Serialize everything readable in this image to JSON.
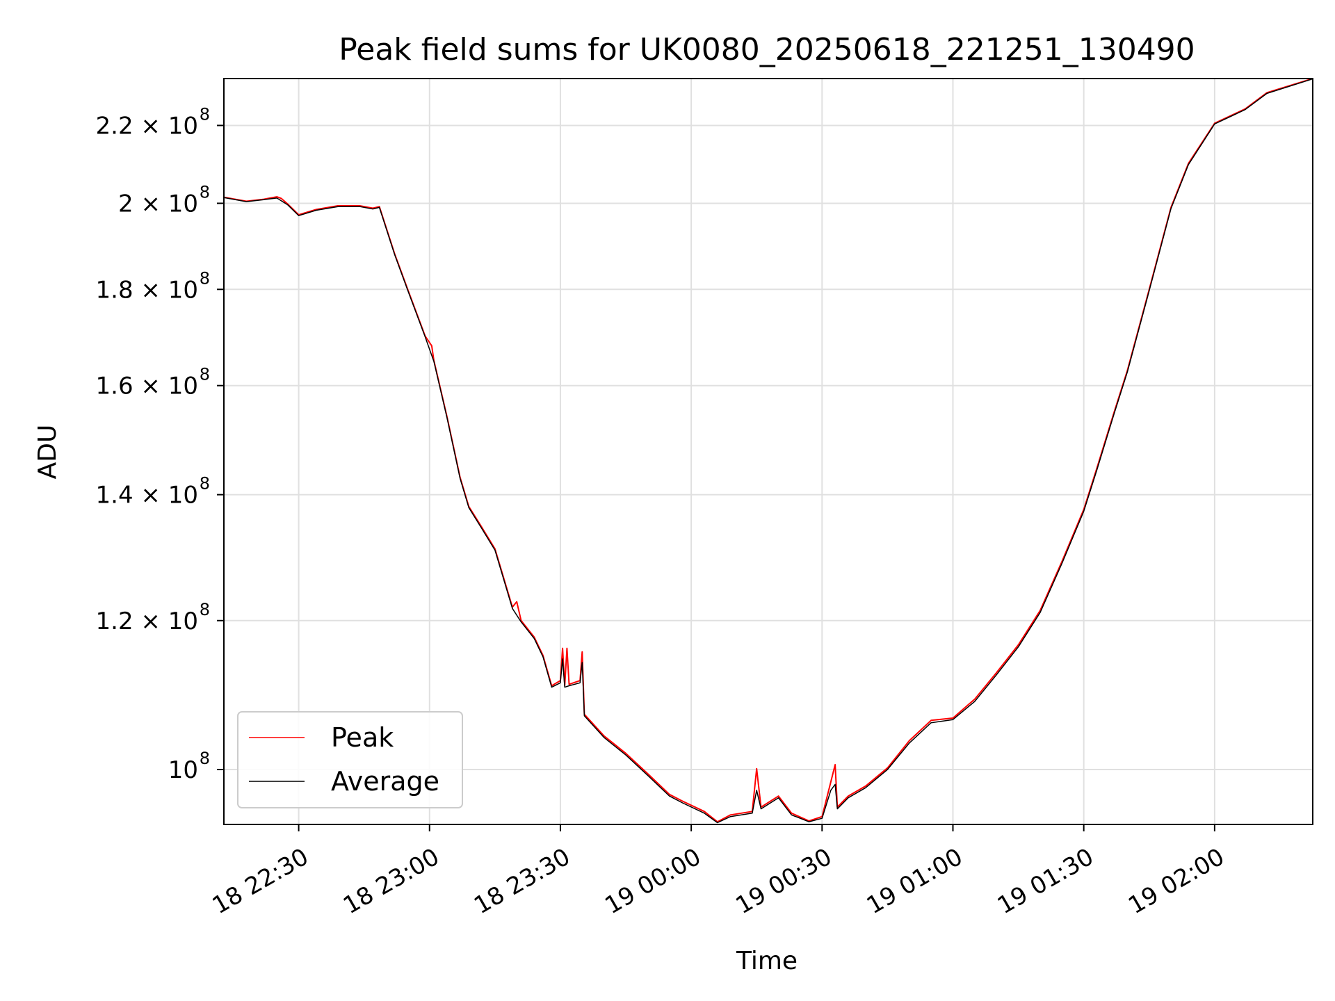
{
  "chart_data": {
    "type": "line",
    "title": "Peak field sums for UK0080_20250618_221251_130490",
    "xlabel": "Time",
    "ylabel": "ADU",
    "y_scale": "log",
    "grid": true,
    "legend_placement": "lower-left",
    "xlim": [
      "2025-06-18 22:12:51",
      "2025-06-19 02:22:30"
    ],
    "ylim": [
      93500000,
      233000000
    ],
    "x_ticks": [
      {
        "value": "2025-06-18 22:30",
        "label": "18 22:30"
      },
      {
        "value": "2025-06-18 23:00",
        "label": "18 23:00"
      },
      {
        "value": "2025-06-18 23:30",
        "label": "18 23:30"
      },
      {
        "value": "2025-06-19 00:00",
        "label": "19 00:00"
      },
      {
        "value": "2025-06-19 00:30",
        "label": "19 00:30"
      },
      {
        "value": "2025-06-19 01:00",
        "label": "19 01:00"
      },
      {
        "value": "2025-06-19 01:30",
        "label": "19 01:30"
      },
      {
        "value": "2025-06-19 02:00",
        "label": "19 02:00"
      }
    ],
    "y_ticks": [
      {
        "value": 100000000,
        "label": "10",
        "exp": "8"
      },
      {
        "value": 120000000,
        "label": "1.2 × 10",
        "exp": "8"
      },
      {
        "value": 140000000,
        "label": "1.4 × 10",
        "exp": "8"
      },
      {
        "value": 160000000,
        "label": "1.6 × 10",
        "exp": "8"
      },
      {
        "value": 180000000,
        "label": "1.8 × 10",
        "exp": "8"
      },
      {
        "value": 200000000,
        "label": "2 × 10",
        "exp": "8"
      },
      {
        "value": 220000000,
        "label": "2.2 × 10",
        "exp": "8"
      }
    ],
    "series": [
      {
        "name": "Peak",
        "color": "#ff0000",
        "points": [
          [
            "2025-06-18 22:12:51",
            201500000
          ],
          [
            "2025-06-18 22:18:00",
            200500000
          ],
          [
            "2025-06-18 22:22:00",
            201000000
          ],
          [
            "2025-06-18 22:25:00",
            201600000
          ],
          [
            "2025-06-18 22:26:00",
            201200000
          ],
          [
            "2025-06-18 22:27:30",
            199800000
          ],
          [
            "2025-06-18 22:30:00",
            197200000
          ],
          [
            "2025-06-18 22:34:00",
            198500000
          ],
          [
            "2025-06-18 22:39:00",
            199400000
          ],
          [
            "2025-06-18 22:44:00",
            199400000
          ],
          [
            "2025-06-18 22:47:00",
            198800000
          ],
          [
            "2025-06-18 22:48:30",
            199200000
          ],
          [
            "2025-06-18 22:52:00",
            188000000
          ],
          [
            "2025-06-18 22:55:00",
            180000000
          ],
          [
            "2025-06-18 22:59:00",
            170000000
          ],
          [
            "2025-06-18 23:00:30",
            168000000
          ],
          [
            "2025-06-18 23:01:00",
            165000000
          ],
          [
            "2025-06-18 23:04:00",
            154000000
          ],
          [
            "2025-06-18 23:07:00",
            143000000
          ],
          [
            "2025-06-18 23:09:00",
            138000000
          ],
          [
            "2025-06-18 23:12:00",
            134500000
          ],
          [
            "2025-06-18 23:15:00",
            131000000
          ],
          [
            "2025-06-18 23:19:00",
            122000000
          ],
          [
            "2025-06-18 23:20:00",
            122800000
          ],
          [
            "2025-06-18 23:21:00",
            120000000
          ],
          [
            "2025-06-18 23:24:00",
            117600000
          ],
          [
            "2025-06-18 23:26:00",
            115000000
          ],
          [
            "2025-06-18 23:28:00",
            110800000
          ],
          [
            "2025-06-18 23:30:00",
            111500000
          ],
          [
            "2025-06-18 23:30:30",
            116000000
          ],
          [
            "2025-06-18 23:31:00",
            110800000
          ],
          [
            "2025-06-18 23:31:30",
            116000000
          ],
          [
            "2025-06-18 23:32:00",
            111000000
          ],
          [
            "2025-06-18 23:34:30",
            111500000
          ],
          [
            "2025-06-18 23:35:00",
            115500000
          ],
          [
            "2025-06-18 23:35:30",
            107000000
          ],
          [
            "2025-06-18 23:40:00",
            104200000
          ],
          [
            "2025-06-18 23:45:00",
            102000000
          ],
          [
            "2025-06-18 23:50:00",
            99500000
          ],
          [
            "2025-06-18 23:55:00",
            97000000
          ],
          [
            "2025-06-18 23:58:00",
            96200000
          ],
          [
            "2025-06-19 00:03:00",
            95000000
          ],
          [
            "2025-06-19 00:06:00",
            93800000
          ],
          [
            "2025-06-19 00:09:00",
            94600000
          ],
          [
            "2025-06-19 00:14:00",
            95000000
          ],
          [
            "2025-06-19 00:15:00",
            100100000
          ],
          [
            "2025-06-19 00:16:00",
            95500000
          ],
          [
            "2025-06-19 00:20:00",
            96800000
          ],
          [
            "2025-06-19 00:23:00",
            94800000
          ],
          [
            "2025-06-19 00:27:00",
            93900000
          ],
          [
            "2025-06-19 00:30:00",
            94400000
          ],
          [
            "2025-06-19 00:32:00",
            98500000
          ],
          [
            "2025-06-19 00:33:00",
            100600000
          ],
          [
            "2025-06-19 00:33:30",
            95500000
          ],
          [
            "2025-06-19 00:36:00",
            96800000
          ],
          [
            "2025-06-19 00:40:00",
            98000000
          ],
          [
            "2025-06-19 00:45:00",
            100200000
          ],
          [
            "2025-06-19 00:50:00",
            103600000
          ],
          [
            "2025-06-19 00:55:00",
            106200000
          ],
          [
            "2025-06-19 01:00:00",
            106500000
          ],
          [
            "2025-06-19 01:05:00",
            109000000
          ],
          [
            "2025-06-19 01:10:00",
            112600000
          ],
          [
            "2025-06-19 01:15:00",
            116500000
          ],
          [
            "2025-06-19 01:20:00",
            121500000
          ],
          [
            "2025-06-19 01:25:00",
            129000000
          ],
          [
            "2025-06-19 01:30:00",
            137500000
          ],
          [
            "2025-06-19 01:33:00",
            144600000
          ],
          [
            "2025-06-19 01:37:00",
            155000000
          ],
          [
            "2025-06-19 01:40:00",
            163000000
          ],
          [
            "2025-06-19 01:45:00",
            180000000
          ],
          [
            "2025-06-19 01:50:00",
            199000000
          ],
          [
            "2025-06-19 01:54:00",
            210000000
          ],
          [
            "2025-06-19 02:00:00",
            220600000
          ],
          [
            "2025-06-19 02:07:00",
            224500000
          ],
          [
            "2025-06-19 02:12:00",
            229000000
          ],
          [
            "2025-06-19 02:22:30",
            233000000
          ]
        ]
      },
      {
        "name": "Average",
        "color": "#000000",
        "points": [
          [
            "2025-06-18 22:12:51",
            201400000
          ],
          [
            "2025-06-18 22:18:00",
            200400000
          ],
          [
            "2025-06-18 22:22:00",
            200900000
          ],
          [
            "2025-06-18 22:25:00",
            201300000
          ],
          [
            "2025-06-18 22:27:30",
            199600000
          ],
          [
            "2025-06-18 22:30:00",
            197000000
          ],
          [
            "2025-06-18 22:34:00",
            198300000
          ],
          [
            "2025-06-18 22:39:00",
            199200000
          ],
          [
            "2025-06-18 22:44:00",
            199200000
          ],
          [
            "2025-06-18 22:47:00",
            198600000
          ],
          [
            "2025-06-18 22:48:30",
            199000000
          ],
          [
            "2025-06-18 22:52:00",
            187800000
          ],
          [
            "2025-06-18 22:55:00",
            179800000
          ],
          [
            "2025-06-18 22:59:00",
            169800000
          ],
          [
            "2025-06-18 23:01:00",
            164800000
          ],
          [
            "2025-06-18 23:04:00",
            153800000
          ],
          [
            "2025-06-18 23:07:00",
            142800000
          ],
          [
            "2025-06-18 23:09:00",
            137800000
          ],
          [
            "2025-06-18 23:12:00",
            134300000
          ],
          [
            "2025-06-18 23:15:00",
            130800000
          ],
          [
            "2025-06-18 23:19:00",
            121800000
          ],
          [
            "2025-06-18 23:21:00",
            119800000
          ],
          [
            "2025-06-18 23:24:00",
            117400000
          ],
          [
            "2025-06-18 23:26:00",
            114800000
          ],
          [
            "2025-06-18 23:28:00",
            110600000
          ],
          [
            "2025-06-18 23:30:00",
            111200000
          ],
          [
            "2025-06-18 23:30:30",
            114500000
          ],
          [
            "2025-06-18 23:31:00",
            110600000
          ],
          [
            "2025-06-18 23:32:00",
            110800000
          ],
          [
            "2025-06-18 23:34:30",
            111200000
          ],
          [
            "2025-06-18 23:35:00",
            114000000
          ],
          [
            "2025-06-18 23:35:30",
            106800000
          ],
          [
            "2025-06-18 23:40:00",
            104000000
          ],
          [
            "2025-06-18 23:45:00",
            101800000
          ],
          [
            "2025-06-18 23:50:00",
            99300000
          ],
          [
            "2025-06-18 23:55:00",
            96800000
          ],
          [
            "2025-06-18 23:58:00",
            96000000
          ],
          [
            "2025-06-19 00:03:00",
            94800000
          ],
          [
            "2025-06-19 00:06:00",
            93700000
          ],
          [
            "2025-06-19 00:09:00",
            94400000
          ],
          [
            "2025-06-19 00:14:00",
            94800000
          ],
          [
            "2025-06-19 00:15:00",
            97500000
          ],
          [
            "2025-06-19 00:16:00",
            95300000
          ],
          [
            "2025-06-19 00:20:00",
            96600000
          ],
          [
            "2025-06-19 00:23:00",
            94600000
          ],
          [
            "2025-06-19 00:27:00",
            93800000
          ],
          [
            "2025-06-19 00:30:00",
            94200000
          ],
          [
            "2025-06-19 00:32:00",
            97500000
          ],
          [
            "2025-06-19 00:33:00",
            98200000
          ],
          [
            "2025-06-19 00:33:30",
            95300000
          ],
          [
            "2025-06-19 00:36:00",
            96600000
          ],
          [
            "2025-06-19 00:40:00",
            97800000
          ],
          [
            "2025-06-19 00:45:00",
            100000000
          ],
          [
            "2025-06-19 00:50:00",
            103300000
          ],
          [
            "2025-06-19 00:55:00",
            105900000
          ],
          [
            "2025-06-19 01:00:00",
            106300000
          ],
          [
            "2025-06-19 01:05:00",
            108700000
          ],
          [
            "2025-06-19 01:10:00",
            112300000
          ],
          [
            "2025-06-19 01:15:00",
            116200000
          ],
          [
            "2025-06-19 01:20:00",
            121200000
          ],
          [
            "2025-06-19 01:25:00",
            128700000
          ],
          [
            "2025-06-19 01:30:00",
            137200000
          ],
          [
            "2025-06-19 01:33:00",
            144300000
          ],
          [
            "2025-06-19 01:37:00",
            154700000
          ],
          [
            "2025-06-19 01:40:00",
            162700000
          ],
          [
            "2025-06-19 01:45:00",
            179700000
          ],
          [
            "2025-06-19 01:50:00",
            198700000
          ],
          [
            "2025-06-19 01:54:00",
            209700000
          ],
          [
            "2025-06-19 02:00:00",
            220400000
          ],
          [
            "2025-06-19 02:07:00",
            224300000
          ],
          [
            "2025-06-19 02:12:00",
            228800000
          ],
          [
            "2025-06-19 02:22:30",
            232900000
          ]
        ]
      }
    ]
  }
}
